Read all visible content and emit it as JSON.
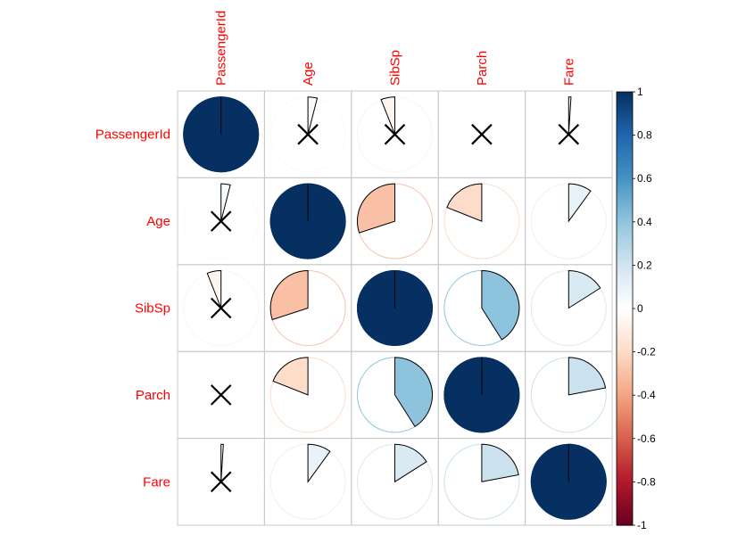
{
  "chart_data": {
    "type": "heatmap",
    "method": "pie",
    "variables": [
      "PassengerId",
      "Age",
      "SibSp",
      "Parch",
      "Fare"
    ],
    "matrix": [
      [
        1.0,
        0.04,
        -0.06,
        0.0,
        0.01
      ],
      [
        0.04,
        1.0,
        -0.3,
        -0.19,
        0.1
      ],
      [
        -0.06,
        -0.3,
        1.0,
        0.41,
        0.16
      ],
      [
        0.0,
        -0.19,
        0.41,
        1.0,
        0.22
      ],
      [
        0.01,
        0.1,
        0.16,
        0.22,
        1.0
      ]
    ],
    "insignificant": [
      [
        false,
        true,
        true,
        true,
        true
      ],
      [
        true,
        false,
        false,
        false,
        false
      ],
      [
        true,
        false,
        false,
        false,
        false
      ],
      [
        true,
        false,
        false,
        false,
        false
      ],
      [
        true,
        false,
        false,
        false,
        false
      ]
    ],
    "colorbar": {
      "ticks": [
        "1",
        "0.8",
        "0.6",
        "0.4",
        "0.2",
        "0",
        "-0.2",
        "-0.4",
        "-0.6",
        "-0.8",
        "-1"
      ],
      "range": [
        -1,
        1
      ],
      "palette": [
        "#67001F",
        "#B2182B",
        "#D6604D",
        "#F4A582",
        "#FDDBC7",
        "#FFFFFF",
        "#D1E5F0",
        "#92C5DE",
        "#4393C3",
        "#2166AC",
        "#053061"
      ]
    },
    "label_color": "#FF0000"
  }
}
